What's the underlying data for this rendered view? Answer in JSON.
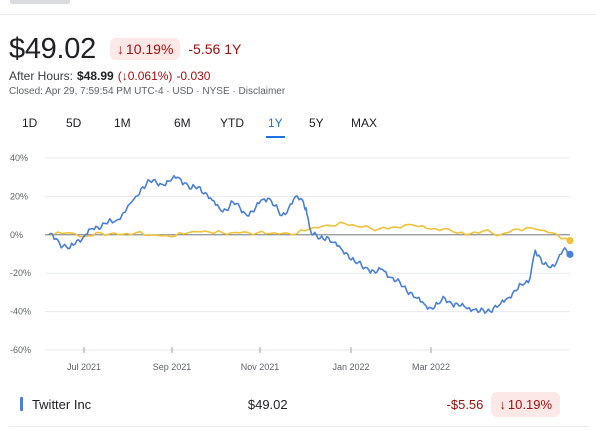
{
  "quote": {
    "price": "$49.02",
    "change_pct": "10.19%",
    "change_abs_label": "-5.56 1Y",
    "after_hours_label": "After Hours:",
    "after_hours_price": "$48.99",
    "after_hours_pct": "(↓0.061%)",
    "after_hours_abs": "-0.030",
    "closed_line": "Closed: Apr 29, 7:59:54 PM UTC-4 · USD · NYSE · ",
    "disclaimer": "Disclaimer"
  },
  "ranges": {
    "items": [
      "1D",
      "5D",
      "1M",
      "6M",
      "YTD",
      "1Y",
      "5Y",
      "MAX"
    ],
    "active": "1Y"
  },
  "chart_data": {
    "type": "line",
    "x_tick_labels": [
      "Jul 2021",
      "Sep 2021",
      "Nov 2021",
      "Jan 2022",
      "Mar 2022"
    ],
    "y_tick_labels": [
      "40%",
      "20%",
      "0%",
      "-20%",
      "-40%",
      "-60%"
    ],
    "ylim": [
      -60,
      40
    ],
    "grid": true,
    "n_points": 252,
    "series": [
      {
        "name": "Twitter Inc",
        "color": "#4a7fd6",
        "anchors": [
          [
            0,
            0
          ],
          [
            4,
            -2
          ],
          [
            8,
            -6
          ],
          [
            12,
            -7
          ],
          [
            16,
            -3
          ],
          [
            20,
            -1
          ],
          [
            24,
            3
          ],
          [
            28,
            4
          ],
          [
            32,
            6
          ],
          [
            38,
            7
          ],
          [
            44,
            12
          ],
          [
            50,
            20
          ],
          [
            54,
            25
          ],
          [
            58,
            28
          ],
          [
            62,
            27
          ],
          [
            66,
            26
          ],
          [
            70,
            28
          ],
          [
            74,
            30
          ],
          [
            78,
            27
          ],
          [
            82,
            24
          ],
          [
            86,
            25
          ],
          [
            90,
            22
          ],
          [
            94,
            18
          ],
          [
            98,
            14
          ],
          [
            102,
            13
          ],
          [
            106,
            17
          ],
          [
            110,
            14
          ],
          [
            114,
            10
          ],
          [
            118,
            12
          ],
          [
            122,
            18
          ],
          [
            126,
            19
          ],
          [
            130,
            15
          ],
          [
            134,
            10
          ],
          [
            138,
            14
          ],
          [
            142,
            20
          ],
          [
            146,
            18
          ],
          [
            148,
            14
          ],
          [
            150,
            4
          ],
          [
            152,
            0
          ],
          [
            156,
            -2
          ],
          [
            160,
            -1
          ],
          [
            164,
            -4
          ],
          [
            168,
            -7
          ],
          [
            172,
            -10
          ],
          [
            176,
            -14
          ],
          [
            180,
            -16
          ],
          [
            184,
            -18
          ],
          [
            188,
            -20
          ],
          [
            192,
            -18
          ],
          [
            196,
            -22
          ],
          [
            200,
            -24
          ],
          [
            204,
            -27
          ],
          [
            208,
            -30
          ],
          [
            212,
            -33
          ],
          [
            216,
            -36
          ],
          [
            220,
            -38
          ],
          [
            224,
            -36
          ],
          [
            228,
            -33
          ],
          [
            232,
            -36
          ],
          [
            236,
            -37
          ],
          [
            240,
            -38
          ],
          [
            244,
            -39
          ],
          [
            248,
            -40
          ],
          [
            252,
            -40
          ],
          [
            256,
            -38
          ],
          [
            260,
            -36
          ],
          [
            264,
            -33
          ],
          [
            268,
            -29
          ],
          [
            272,
            -26
          ],
          [
            276,
            -25
          ],
          [
            280,
            -8
          ],
          [
            284,
            -15
          ],
          [
            288,
            -17
          ],
          [
            292,
            -15
          ],
          [
            296,
            -8
          ],
          [
            300,
            -10
          ]
        ],
        "end_value": -10.19
      },
      {
        "name": "",
        "color": "#f0c23a",
        "anchors": [
          [
            0,
            0
          ],
          [
            10,
            1
          ],
          [
            20,
            -1
          ],
          [
            30,
            1
          ],
          [
            40,
            0
          ],
          [
            50,
            1
          ],
          [
            60,
            0
          ],
          [
            70,
            -1
          ],
          [
            80,
            1
          ],
          [
            90,
            2
          ],
          [
            100,
            1
          ],
          [
            110,
            1
          ],
          [
            120,
            1
          ],
          [
            130,
            1
          ],
          [
            140,
            0
          ],
          [
            150,
            3
          ],
          [
            160,
            5
          ],
          [
            170,
            6
          ],
          [
            180,
            4
          ],
          [
            190,
            3
          ],
          [
            200,
            4
          ],
          [
            210,
            5
          ],
          [
            220,
            3
          ],
          [
            230,
            3
          ],
          [
            240,
            0
          ],
          [
            250,
            2
          ],
          [
            260,
            0
          ],
          [
            270,
            3
          ],
          [
            280,
            3
          ],
          [
            290,
            1
          ],
          [
            300,
            -3
          ]
        ],
        "end_value": -3
      }
    ]
  },
  "legend": {
    "name": "Twitter Inc",
    "price": "$49.02",
    "change_abs": "-$5.56",
    "change_pct": "10.19%"
  },
  "colors": {
    "twitter_line": "#4a7fd6",
    "compare_line": "#f0c23a",
    "negative": "#a50e0e",
    "negative_bg": "#fce8e6",
    "accent": "#1a73e8"
  }
}
